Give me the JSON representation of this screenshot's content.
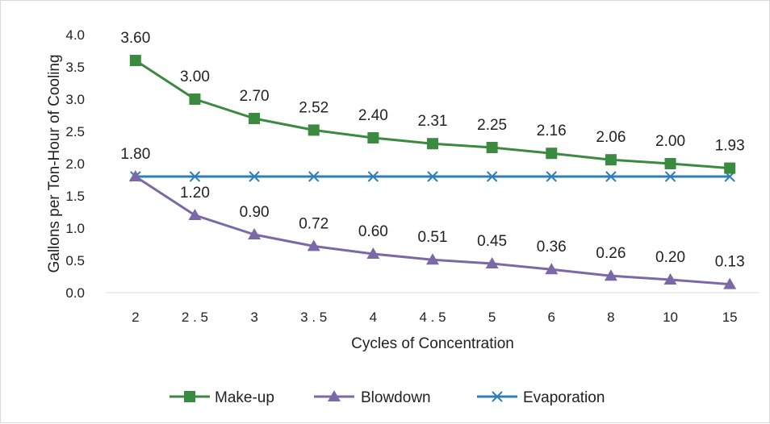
{
  "chart_data": {
    "type": "line",
    "categories": [
      "2",
      "2.5",
      "3",
      "3.5",
      "4",
      "4.5",
      "5",
      "6",
      "8",
      "10",
      "15"
    ],
    "category_tick_labels": [
      "2",
      "2 . 5",
      "3",
      "3 . 5",
      "4",
      "4 . 5",
      "5",
      "6",
      "8",
      "10",
      "15"
    ],
    "series": [
      {
        "name": "Make-up",
        "color": "#3a8a3f",
        "marker": "square",
        "values": [
          3.6,
          3.0,
          2.7,
          2.52,
          2.4,
          2.31,
          2.25,
          2.16,
          2.06,
          2.0,
          1.93
        ],
        "labels": [
          "3.60",
          "3.00",
          "2.70",
          "2.52",
          "2.40",
          "2.31",
          "2.25",
          "2.16",
          "2.06",
          "2.00",
          "1.93"
        ]
      },
      {
        "name": "Blowdown",
        "color": "#7b68a6",
        "marker": "triangle",
        "values": [
          1.8,
          1.2,
          0.9,
          0.72,
          0.6,
          0.51,
          0.45,
          0.36,
          0.26,
          0.2,
          0.13
        ],
        "labels": [
          "1.80",
          "1.20",
          "0.90",
          "0.72",
          "0.60",
          "0.51",
          "0.45",
          "0.36",
          "0.26",
          "0.20",
          "0.13"
        ]
      },
      {
        "name": "Evaporation",
        "color": "#2e7fb8",
        "marker": "x",
        "values": [
          1.8,
          1.8,
          1.8,
          1.8,
          1.8,
          1.8,
          1.8,
          1.8,
          1.8,
          1.8,
          1.8
        ]
      }
    ],
    "xlabel": "Cycles of Concentration",
    "ylabel": "Gallons per Ton-Hour of Cooling",
    "ylim": [
      0,
      4.0
    ],
    "yticks": [
      "0.0",
      "0.5",
      "1.0",
      "1.5",
      "2.0",
      "2.5",
      "3.0",
      "3.5",
      "4.0"
    ],
    "grid": false,
    "legend_position": "bottom"
  }
}
